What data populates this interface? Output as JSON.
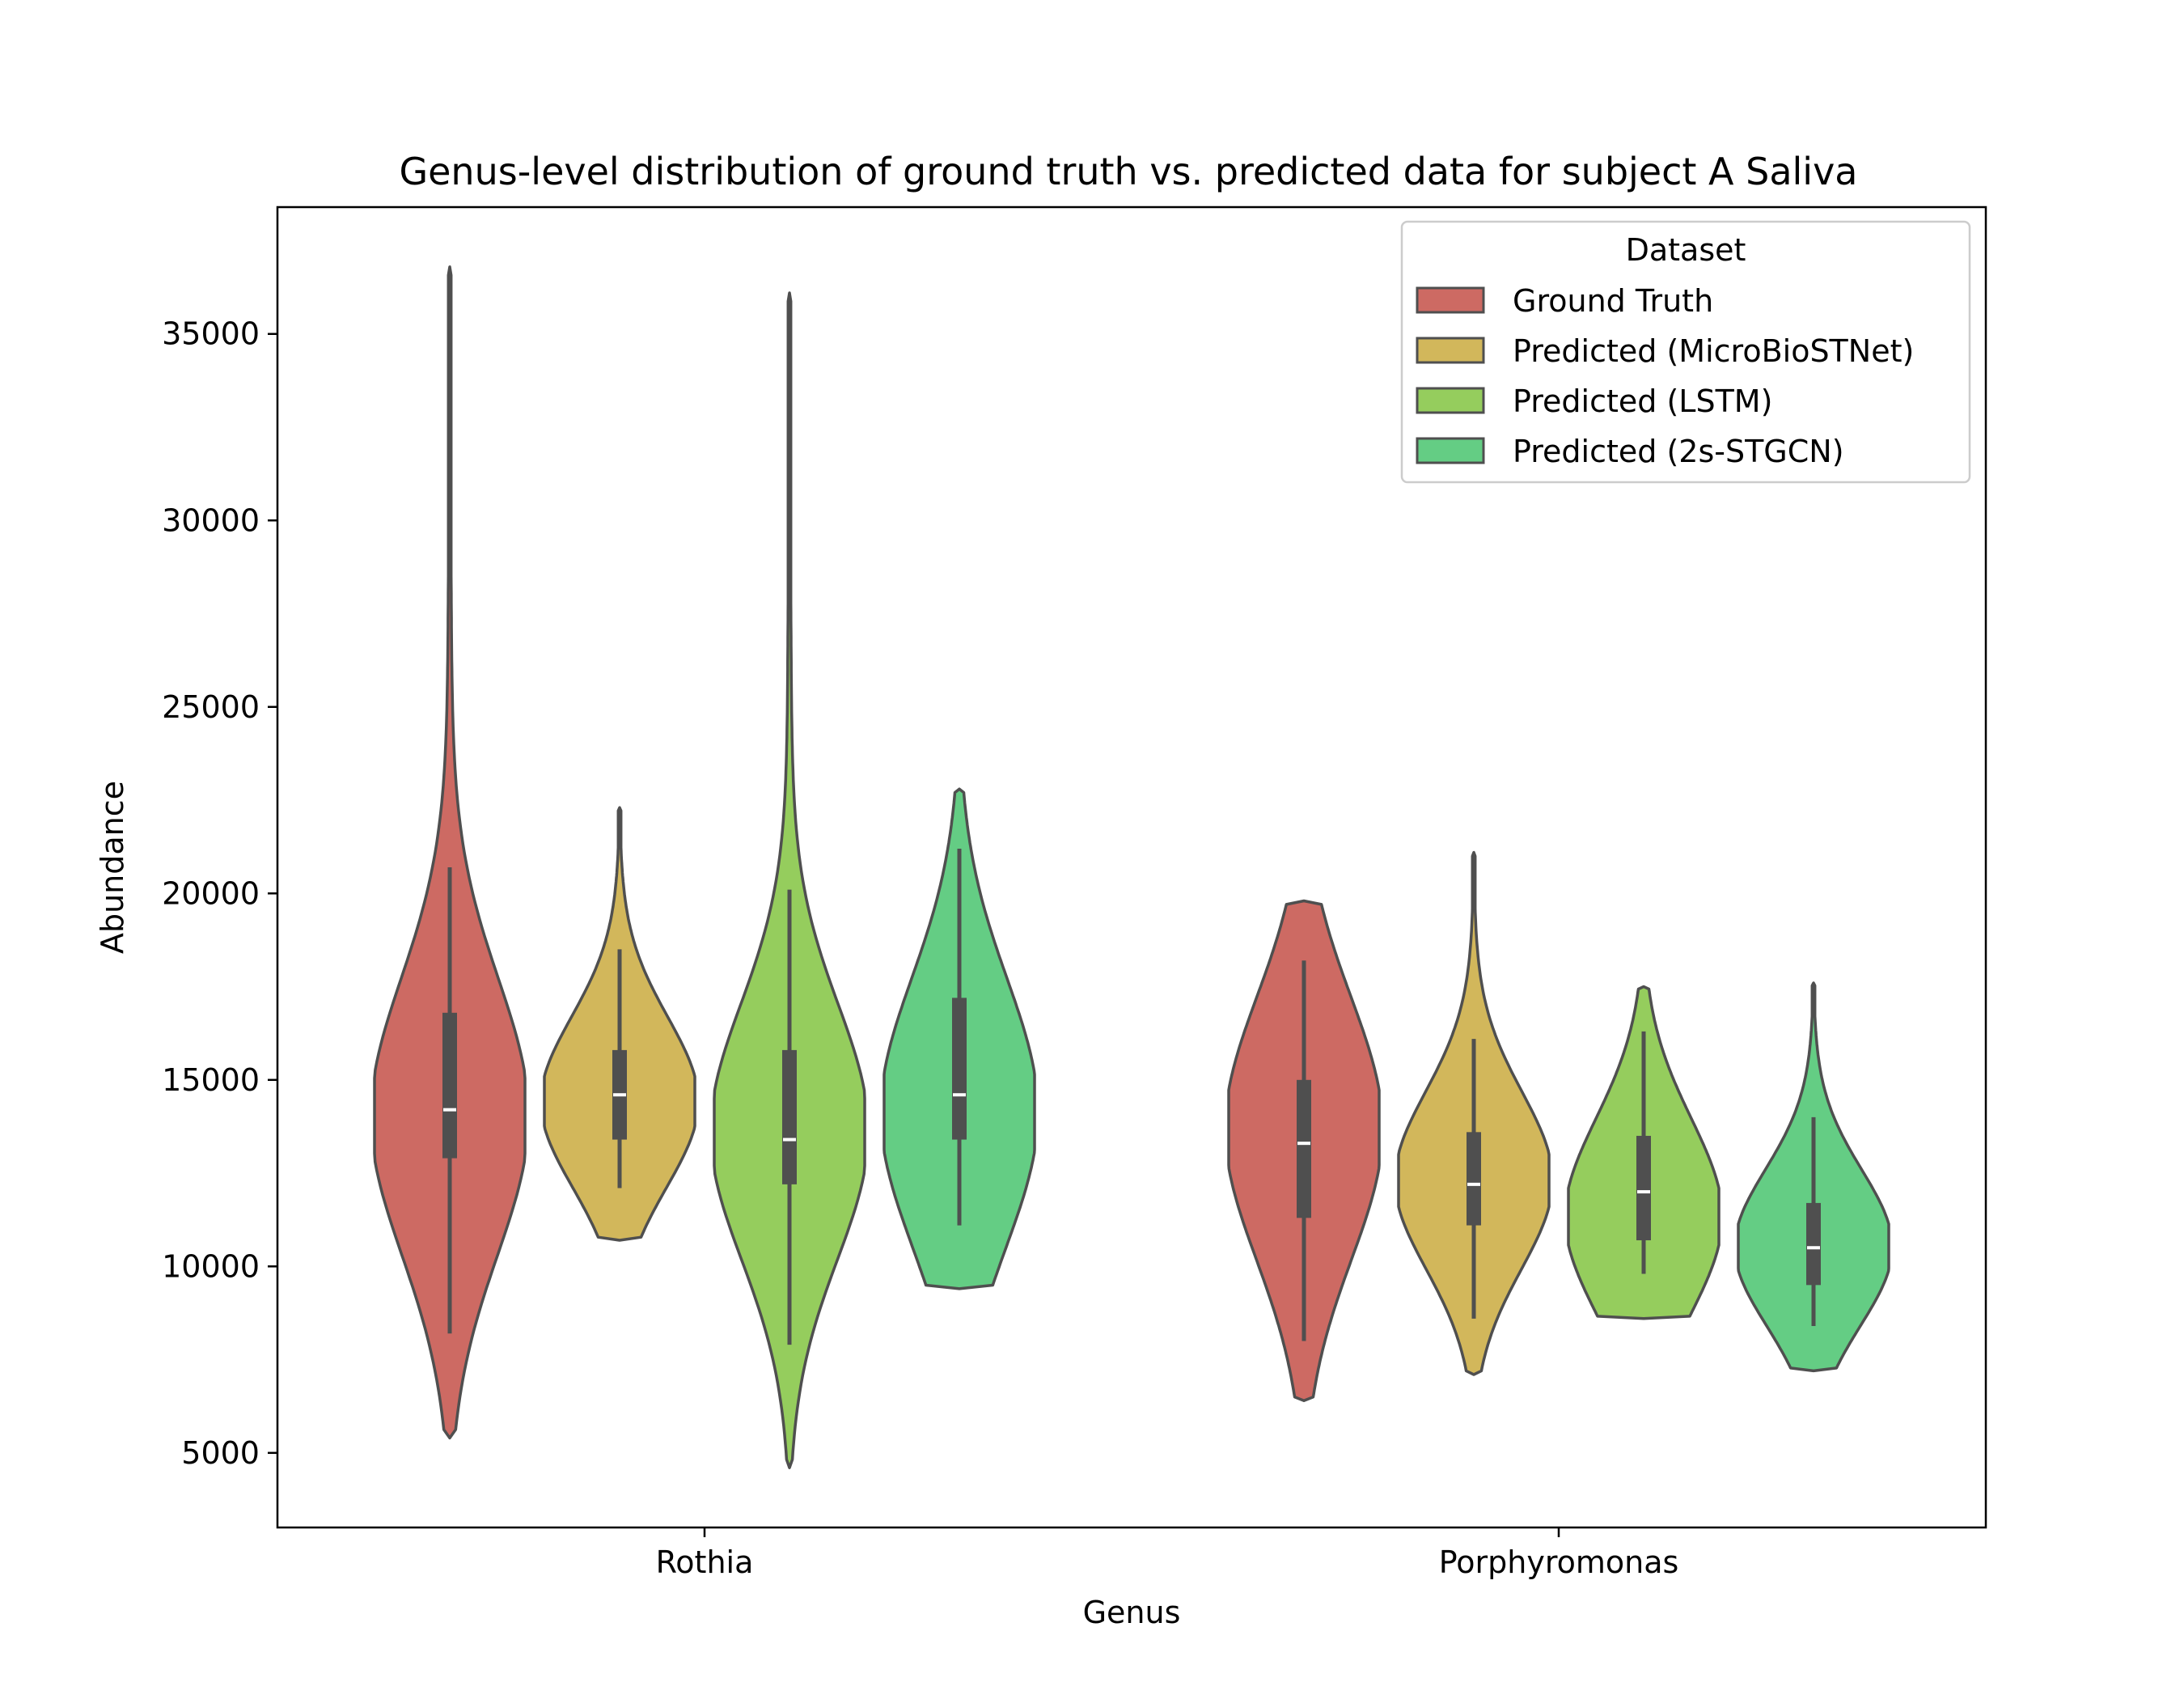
{
  "chart_data": {
    "type": "violin",
    "title": "Genus-level distribution of ground truth vs. predicted data for subject A Saliva",
    "xlabel": "Genus",
    "ylabel": "Abundance",
    "categories": [
      "Rothia",
      "Porphyromonas"
    ],
    "ylim": [
      3000,
      38400
    ],
    "yticks": [
      5000,
      10000,
      15000,
      20000,
      25000,
      30000,
      35000
    ],
    "grid": false,
    "legend": {
      "title": "Dataset",
      "placement": "top-right"
    },
    "series": [
      {
        "name": "Ground Truth",
        "color": "#cd6a63",
        "stats": [
          {
            "min": 5400,
            "max": 36800,
            "q1": 12900,
            "median": 14200,
            "q3": 16800,
            "whisker_low": 8200,
            "whisker_high": 20700,
            "peak": 14000
          },
          {
            "min": 6400,
            "max": 19800,
            "q1": 11300,
            "median": 13300,
            "q3": 15000,
            "whisker_low": 8000,
            "whisker_high": 18200,
            "peak": 13700
          }
        ]
      },
      {
        "name": "Predicted (MicroBioSTNet)",
        "color": "#d2b75b",
        "stats": [
          {
            "min": 10700,
            "max": 22300,
            "q1": 13400,
            "median": 14600,
            "q3": 15800,
            "whisker_low": 12100,
            "whisker_high": 18500,
            "peak": 14400
          },
          {
            "min": 7100,
            "max": 21100,
            "q1": 11100,
            "median": 12200,
            "q3": 13600,
            "whisker_low": 8600,
            "whisker_high": 16100,
            "peak": 12300
          }
        ]
      },
      {
        "name": "Predicted (LSTM)",
        "color": "#95cd5d",
        "stats": [
          {
            "min": 4600,
            "max": 36100,
            "q1": 12200,
            "median": 13400,
            "q3": 15800,
            "whisker_low": 7900,
            "whisker_high": 20100,
            "peak": 13600
          },
          {
            "min": 8600,
            "max": 17500,
            "q1": 10700,
            "median": 12000,
            "q3": 13500,
            "whisker_low": 9800,
            "whisker_high": 16300,
            "peak": 11300
          }
        ]
      },
      {
        "name": "Predicted (2s-STGCN)",
        "color": "#64cd84",
        "stats": [
          {
            "min": 9400,
            "max": 22800,
            "q1": 13400,
            "median": 14600,
            "q3": 17200,
            "whisker_low": 11100,
            "whisker_high": 21200,
            "peak": 14100
          },
          {
            "min": 7200,
            "max": 17600,
            "q1": 9500,
            "median": 10500,
            "q3": 11700,
            "whisker_low": 8400,
            "whisker_high": 14000,
            "peak": 10500
          }
        ]
      }
    ]
  }
}
